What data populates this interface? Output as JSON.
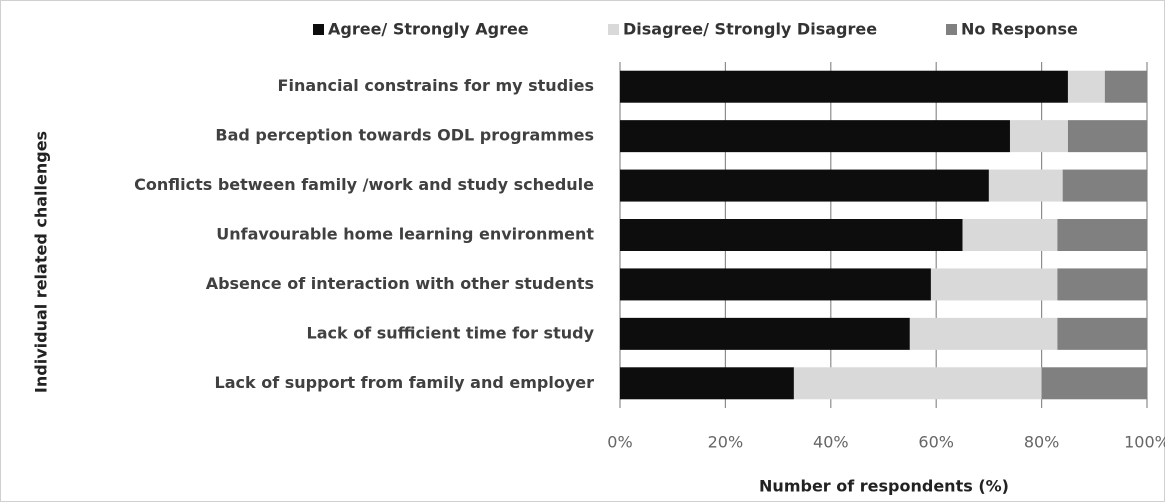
{
  "chart_data": {
    "type": "stacked-bar-horizontal",
    "categories": [
      "Financial constrains for my studies",
      "Bad perception towards ODL programmes",
      "Conflicts between family /work and study schedule",
      "Unfavourable home learning environment",
      "Absence of interaction with other students",
      "Lack of sufficient time for study",
      "Lack of support from family and  employer"
    ],
    "series": [
      {
        "name": "Agree/ Strongly Agree",
        "color": "#0d0d0d",
        "values": [
          85,
          74,
          70,
          65,
          59,
          55,
          33
        ]
      },
      {
        "name": "Disagree/ Strongly Disagree",
        "color": "#d9d9d9",
        "values": [
          7,
          11,
          14,
          18,
          24,
          28,
          47
        ]
      },
      {
        "name": "No Response",
        "color": "#808080",
        "values": [
          8,
          15,
          16,
          17,
          17,
          17,
          20
        ]
      }
    ],
    "xlim": [
      0,
      100
    ],
    "xticks": [
      {
        "value": 0,
        "label": "0%"
      },
      {
        "value": 20,
        "label": "20%"
      },
      {
        "value": 40,
        "label": "40%"
      },
      {
        "value": 60,
        "label": "60%"
      },
      {
        "value": 80,
        "label": "80%"
      },
      {
        "value": 100,
        "label": "100%"
      }
    ],
    "xlabel": "Number of respondents (%)",
    "ylabel": "Individual related challenges",
    "grid": true,
    "legend": "top"
  }
}
